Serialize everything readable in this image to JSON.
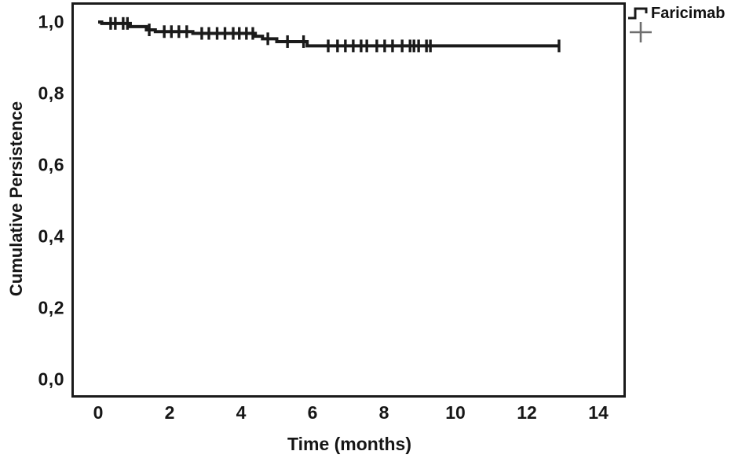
{
  "chart_data": {
    "type": "line",
    "subtype": "kaplan-meier-step",
    "title": "",
    "xlabel": "Time (months)",
    "ylabel": "Cumulative Persistence",
    "xlim": [
      0,
      14
    ],
    "ylim": [
      0.0,
      1.0
    ],
    "grid": false,
    "decimal_separator": ",",
    "xticks": [
      "0",
      "2",
      "4",
      "6",
      "8",
      "10",
      "12",
      "14"
    ],
    "xtick_values": [
      0,
      2,
      4,
      6,
      8,
      10,
      12,
      14
    ],
    "yticks": [
      "1,0",
      "0,8",
      "0,6",
      "0,4",
      "0,2",
      "0,0"
    ],
    "ytick_values": [
      1.0,
      0.8,
      0.6,
      0.4,
      0.2,
      0.0
    ],
    "legend": {
      "position": "top-right-outside",
      "entries": [
        {
          "label": "Faricimab",
          "line_symbol": "step",
          "censor_symbol": "+"
        }
      ]
    },
    "colors": {
      "curve": "#1a1a1a",
      "axis": "#1a1a1a",
      "text": "#161616",
      "legend_censor": "#6e6e6e",
      "background": "#ffffff"
    },
    "series": [
      {
        "name": "Faricimab",
        "color": "#1a1a1a",
        "steps": [
          [
            0.0,
            1.0
          ],
          [
            0.1,
            0.996
          ],
          [
            0.9,
            0.987
          ],
          [
            1.35,
            0.978
          ],
          [
            1.6,
            0.973
          ],
          [
            2.65,
            0.968
          ],
          [
            4.4,
            0.96
          ],
          [
            4.6,
            0.953
          ],
          [
            5.0,
            0.945
          ],
          [
            5.85,
            0.933
          ]
        ],
        "end_time": 12.9,
        "final_value": 0.933,
        "censor_times": [
          0.35,
          0.48,
          0.7,
          0.82,
          1.43,
          1.85,
          2.05,
          2.26,
          2.48,
          2.9,
          3.1,
          3.33,
          3.55,
          3.78,
          3.95,
          4.15,
          4.33,
          4.75,
          5.3,
          5.75,
          6.44,
          6.7,
          6.92,
          7.14,
          7.36,
          7.52,
          7.8,
          8.02,
          8.24,
          8.51,
          8.73,
          8.84,
          8.97,
          9.19,
          9.3,
          12.9
        ]
      }
    ]
  }
}
